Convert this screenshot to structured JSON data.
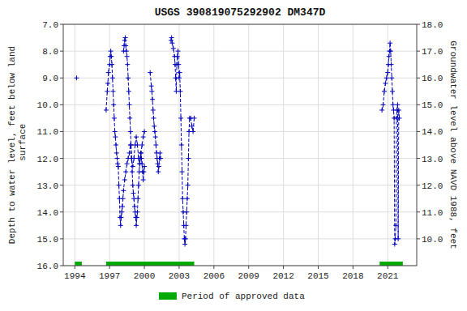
{
  "chart_data": {
    "type": "line",
    "title": "USGS 390819075292902 DM347D",
    "y_label": "Depth to water level, feet below land\n surface",
    "y2_label": "Groundwater level above NAVD 1988, feet",
    "xlim": [
      1993.0,
      2023.5
    ],
    "xticks": [
      1994,
      1997,
      2000,
      2003,
      2006,
      2009,
      2012,
      2015,
      2018,
      2021
    ],
    "ylim": [
      16.0,
      7.0
    ],
    "yticks": [
      {
        "value": 7.0,
        "label": "7.0"
      },
      {
        "value": 8.0,
        "label": "8.0"
      },
      {
        "value": 9.0,
        "label": "9.0"
      },
      {
        "value": 10.0,
        "label": "10.0"
      },
      {
        "value": 11.0,
        "label": "11.0"
      },
      {
        "value": 12.0,
        "label": "12.0"
      },
      {
        "value": 13.0,
        "label": "13.0"
      },
      {
        "value": 14.0,
        "label": "14.0"
      },
      {
        "value": 15.0,
        "label": "15.0"
      },
      {
        "value": 16.0,
        "label": "16.0"
      }
    ],
    "y2lim": [
      9.0,
      18.0
    ],
    "y2ticks": [
      {
        "value": 10.0,
        "label": "10.0"
      },
      {
        "value": 11.0,
        "label": "11.0"
      },
      {
        "value": 12.0,
        "label": "12.0"
      },
      {
        "value": 13.0,
        "label": "13.0"
      },
      {
        "value": 14.0,
        "label": "14.0"
      },
      {
        "value": 15.0,
        "label": "15.0"
      },
      {
        "value": 16.0,
        "label": "16.0"
      },
      {
        "value": 17.0,
        "label": "17.0"
      },
      {
        "value": 18.0,
        "label": "18.0"
      }
    ],
    "grid": true,
    "legend": "bottom",
    "series": [
      {
        "color": "#0000bb",
        "marker": "plus",
        "line_style": "dashed",
        "x": [
          1994.15
        ],
        "values": [
          9.0
        ]
      },
      {
        "color": "#0000bb",
        "marker": "plus",
        "line_style": "dashed",
        "x": [
          1996.7,
          1996.8,
          1996.85,
          1996.9,
          1997.0,
          1997.05,
          1997.1,
          1997.15,
          1997.2,
          1997.25,
          1997.3,
          1997.35,
          1997.4,
          1997.45,
          1997.5,
          1997.55,
          1997.6,
          1997.65,
          1997.7,
          1997.75,
          1997.8,
          1997.85,
          1997.9,
          1997.95,
          1998.0,
          1998.05,
          1998.1,
          1998.15,
          1998.2,
          1998.3,
          1998.4,
          1998.5,
          1998.6,
          1998.7,
          1998.8,
          1998.9,
          1999.0,
          1999.1,
          1999.2,
          1999.3,
          1999.4,
          1999.5,
          1999.6,
          1999.7,
          1999.8,
          1999.9,
          2000.0
        ],
        "values": [
          10.2,
          9.5,
          9.2,
          8.8,
          8.5,
          8.2,
          8.0,
          8.2,
          8.5,
          9.0,
          9.5,
          10.0,
          10.5,
          11.0,
          11.2,
          11.5,
          11.8,
          12.0,
          12.2,
          12.3,
          13.0,
          13.5,
          14.2,
          14.5,
          14.2,
          14.0,
          13.8,
          13.5,
          13.2,
          12.8,
          12.5,
          12.2,
          12.0,
          11.8,
          11.5,
          12.0,
          12.3,
          12.0,
          11.5,
          11.2,
          11.5,
          12.0,
          12.2,
          11.8,
          11.5,
          11.2,
          11.0
        ]
      },
      {
        "color": "#0000bb",
        "marker": "plus",
        "line_style": "dashed",
        "x": [
          1998.2,
          1998.25,
          1998.3,
          1998.35,
          1998.4,
          1998.45,
          1998.5,
          1998.55,
          1998.6,
          1998.65,
          1998.7,
          1998.75,
          1998.8,
          1998.85,
          1998.9,
          1998.95,
          1999.0,
          1999.05,
          1999.1,
          1999.15,
          1999.2,
          1999.25,
          1999.3,
          1999.35,
          1999.4,
          1999.45,
          1999.5,
          1999.55,
          1999.6,
          1999.65,
          1999.7,
          1999.75,
          1999.8,
          1999.85,
          1999.9,
          1999.95,
          2000.0
        ],
        "values": [
          8.0,
          7.8,
          7.6,
          7.5,
          7.8,
          8.0,
          8.2,
          8.5,
          9.0,
          9.5,
          10.0,
          10.5,
          11.0,
          11.5,
          12.0,
          12.5,
          13.0,
          13.3,
          13.5,
          13.8,
          14.0,
          14.2,
          14.5,
          14.2,
          14.0,
          13.5,
          13.0,
          12.5,
          12.2,
          12.0,
          11.8,
          12.0,
          12.2,
          12.5,
          12.8,
          12.5,
          12.3
        ]
      },
      {
        "color": "#0000bb",
        "marker": "plus",
        "line_style": "dashed",
        "x": [
          2000.5,
          2000.6,
          2000.65,
          2000.7,
          2000.75,
          2000.8,
          2000.85,
          2000.9,
          2000.95,
          2001.0,
          2001.05,
          2001.1,
          2001.15,
          2001.2,
          2001.25,
          2001.3,
          2001.35,
          2001.4
        ],
        "values": [
          8.8,
          9.3,
          9.5,
          9.8,
          10.2,
          10.5,
          10.8,
          11.0,
          11.2,
          11.5,
          11.8,
          12.0,
          12.2,
          12.5,
          12.3,
          12.0,
          11.8,
          12.0
        ]
      },
      {
        "color": "#0000bb",
        "marker": "plus",
        "line_style": "dashed",
        "x": [
          2002.3,
          2002.35,
          2002.4,
          2002.5,
          2002.6,
          2002.65,
          2002.7,
          2002.75,
          2002.8,
          2002.85,
          2002.9,
          2002.95,
          2003.0,
          2003.05,
          2003.1,
          2003.15,
          2003.2,
          2003.25,
          2003.3,
          2003.35,
          2003.4,
          2003.45,
          2003.5,
          2003.55,
          2003.6,
          2003.65,
          2003.7,
          2003.75,
          2003.8,
          2003.85,
          2003.9,
          2004.0,
          2004.1,
          2004.2,
          2004.3
        ],
        "values": [
          7.6,
          7.5,
          7.7,
          7.9,
          8.2,
          8.5,
          9.0,
          9.5,
          8.5,
          8.2,
          8.0,
          8.5,
          9.0,
          8.8,
          9.5,
          10.5,
          11.5,
          12.5,
          13.5,
          14.0,
          14.5,
          15.0,
          15.2,
          15.0,
          14.5,
          14.0,
          13.5,
          13.0,
          12.0,
          11.0,
          10.5,
          10.5,
          10.8,
          11.0,
          10.5
        ]
      },
      {
        "color": "#0000bb",
        "marker": "plus",
        "line_style": "dashed",
        "x": [
          2020.5,
          2020.6,
          2020.7,
          2020.8,
          2020.9,
          2021.0,
          2021.05,
          2021.1,
          2021.15,
          2021.2,
          2021.25,
          2021.3,
          2021.35,
          2021.4,
          2021.45,
          2021.5,
          2021.55,
          2021.6,
          2021.65,
          2021.7,
          2021.75,
          2021.8,
          2021.85,
          2021.9,
          2021.95,
          2022.0
        ],
        "values": [
          10.2,
          10.0,
          9.5,
          9.2,
          9.0,
          8.8,
          8.5,
          8.2,
          8.0,
          7.7,
          8.0,
          8.5,
          9.0,
          9.5,
          10.0,
          10.2,
          10.5,
          15.2,
          15.0,
          14.5,
          10.5,
          10.2,
          10.0,
          15.0,
          10.2,
          10.5
        ]
      },
      {
        "name": "Period of approved data",
        "type": "range",
        "color": "#00aa00",
        "y": 16.0,
        "ranges": [
          [
            1994.0,
            1994.6
          ],
          [
            1996.7,
            2004.3
          ],
          [
            2020.3,
            2022.3
          ]
        ]
      }
    ]
  }
}
